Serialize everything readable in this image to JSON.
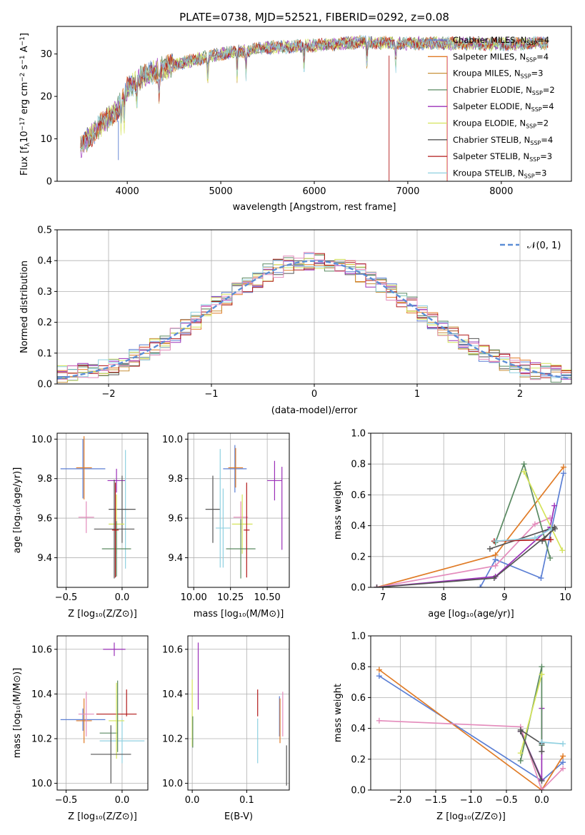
{
  "colors": [
    "#5b7fd4",
    "#e07b26",
    "#c8913a",
    "#5a8a62",
    "#9b30b8",
    "#d4e35a",
    "#555555",
    "#b21a1a",
    "#8fd0e0",
    "#e48cbc"
  ],
  "chart_data": [
    {
      "type": "line",
      "title": "PLATE=0738, MJD=52521, FIBERID=0292, z=0.08",
      "xlabel": "wavelength [Angstrom, rest frame]",
      "ylabel": "Flux [f$_\\lambda$10$^{-17}$ erg cm$^{-2}$ s$^{-1}$ A$^{-1}$]",
      "xlim": [
        3250,
        8750
      ],
      "ylim": [
        0,
        36.5
      ],
      "xticks": [
        4000,
        5000,
        6000,
        7000,
        8000
      ],
      "yticks": [
        0,
        10,
        20,
        30
      ],
      "legend_position": "upper-right",
      "legend": [
        {
          "name": "Chabrier MILES, N",
          "sub": "SSP",
          "tail": "=4"
        },
        {
          "name": "Salpeter MILES, N",
          "sub": "SSP",
          "tail": "=4"
        },
        {
          "name": "Kroupa MILES, N",
          "sub": "SSP",
          "tail": "=3"
        },
        {
          "name": "Chabrier ELODIE, N",
          "sub": "SSP",
          "tail": "=2"
        },
        {
          "name": "Salpeter ELODIE, N",
          "sub": "SSP",
          "tail": "=4"
        },
        {
          "name": "Kroupa ELODIE, N",
          "sub": "SSP",
          "tail": "=2"
        },
        {
          "name": "Chabrier STELIB, N",
          "sub": "SSP",
          "tail": "=4"
        },
        {
          "name": "Salpeter STELIB, N",
          "sub": "SSP",
          "tail": "=3"
        },
        {
          "name": "Kroupa STELIB, N",
          "sub": "SSP",
          "tail": "=3"
        }
      ],
      "continuum": {
        "wavelength": [
          3500,
          3700,
          3900,
          4000,
          4200,
          4500,
          5000,
          5500,
          6000,
          6500,
          7000,
          7500,
          8000,
          8500
        ],
        "flux": [
          8,
          13,
          17,
          22,
          25,
          27.5,
          30,
          31.5,
          32,
          32.8,
          32.5,
          32.5,
          32.3,
          32.6
        ]
      },
      "series_extent": [
        3500,
        8500
      ],
      "grid": false
    },
    {
      "type": "step",
      "xlabel": "(data-model)/error",
      "ylabel": "Normed distribution",
      "xlim": [
        -2.5,
        2.5
      ],
      "ylim": [
        0,
        0.5
      ],
      "xticks": [
        -2,
        -1,
        0,
        1,
        2
      ],
      "xticklabels": [
        "−2",
        "−1",
        "0",
        "1",
        "2"
      ],
      "yticks": [
        0.0,
        0.1,
        0.2,
        0.3,
        0.4,
        0.5
      ],
      "yticklabels": [
        "0.0",
        "0.1",
        "0.2",
        "0.3",
        "0.4",
        "0.5"
      ],
      "bin_width": 0.1,
      "reference_curve": {
        "label": "𝒩(0, 1)",
        "mean": 0,
        "sigma": 1
      },
      "legend_position": "upper-right",
      "grid": true
    },
    {
      "type": "scatter",
      "xlabel": "Z [log₁₀(Z/Z⊙)]",
      "ylabel": "age  [log₁₀(age/yr)]",
      "xlim": [
        -0.58,
        0.23
      ],
      "ylim": [
        9.25,
        10.03
      ],
      "xticks": [
        -0.5,
        0.0
      ],
      "xticklabels": [
        "−0.5",
        "0.0"
      ],
      "yticks": [
        9.4,
        9.6,
        9.8,
        10.0
      ],
      "yticklabels": [
        "9.4",
        "9.6",
        "9.8",
        "10.0"
      ],
      "errorbars": [
        {
          "c": 0,
          "x": -0.35,
          "y": 9.85,
          "xerr": 0.2,
          "yerr": 0.15
        },
        {
          "c": 1,
          "x": -0.34,
          "y": 9.855,
          "xerr": 0.07,
          "yerr": 0.16
        },
        {
          "c": 9,
          "x": -0.32,
          "y": 9.605,
          "xerr": 0.07,
          "yerr": 0.08
        },
        {
          "c": 4,
          "x": -0.05,
          "y": 9.79,
          "xerr": 0.08,
          "yerr": 0.06
        },
        {
          "c": 8,
          "x": 0.03,
          "y": 9.645,
          "xerr": 0.03,
          "yerr": 0.3
        },
        {
          "c": 6,
          "x": 0.0,
          "y": 9.645,
          "xerr": 0.12,
          "yerr": 0.17
        },
        {
          "c": 5,
          "x": -0.05,
          "y": 9.57,
          "xerr": 0.07,
          "yerr": 0.15
        },
        {
          "c": 6,
          "x": -0.07,
          "y": 9.545,
          "xerr": 0.18,
          "yerr": 0.25
        },
        {
          "c": 3,
          "x": -0.05,
          "y": 9.445,
          "xerr": 0.13,
          "yerr": 0.14
        },
        {
          "c": 7,
          "x": -0.06,
          "y": 9.54,
          "xerr": 0.03,
          "yerr": 0.24
        }
      ],
      "grid": true
    },
    {
      "type": "scatter",
      "xlabel": "mass [log₁₀(M/M⊙)]",
      "ylabel": "",
      "xlim": [
        9.96,
        10.65
      ],
      "ylim": [
        9.25,
        10.03
      ],
      "xticks": [
        10.0,
        10.25,
        10.5
      ],
      "xticklabels": [
        "10.00",
        "10.25",
        "10.50"
      ],
      "yticks": [
        9.4,
        9.6,
        9.8,
        10.0
      ],
      "yticklabels": [
        "9.4",
        "9.6",
        "9.8",
        "10.0"
      ],
      "errorbars": [
        {
          "c": 0,
          "x": 10.28,
          "y": 9.85,
          "xerr": 0.08,
          "yerr": 0.12
        },
        {
          "c": 1,
          "x": 10.285,
          "y": 9.855,
          "xerr": 0.05,
          "yerr": 0.1
        },
        {
          "c": 6,
          "x": 10.13,
          "y": 9.645,
          "xerr": 0.05,
          "yerr": 0.17
        },
        {
          "c": 8,
          "x": 10.2,
          "y": 9.55,
          "xerr": 0.05,
          "yerr": 0.2
        },
        {
          "c": 9,
          "x": 10.32,
          "y": 9.605,
          "xerr": 0.05,
          "yerr": 0.08
        },
        {
          "c": 5,
          "x": 10.33,
          "y": 9.57,
          "xerr": 0.07,
          "yerr": 0.15
        },
        {
          "c": 3,
          "x": 10.32,
          "y": 9.445,
          "xerr": 0.1,
          "yerr": 0.15
        },
        {
          "c": 4,
          "x": 10.55,
          "y": 9.79,
          "xerr": 0.05,
          "yerr": 0.1
        },
        {
          "c": 4,
          "x": 10.6,
          "y": 9.65,
          "xerr": 0.0,
          "yerr": 0.21
        },
        {
          "c": 7,
          "x": 10.36,
          "y": 9.54,
          "xerr": 0.02,
          "yerr": 0.24
        },
        {
          "c": 8,
          "x": 10.18,
          "y": 9.65,
          "xerr": 0.0,
          "yerr": 0.3
        }
      ],
      "grid": true
    },
    {
      "type": "line",
      "xlabel": "age  [log₁₀(age/yr)]",
      "ylabel": "mass weight",
      "xlim": [
        6.8,
        10.1
      ],
      "ylim": [
        0,
        1.0
      ],
      "xticks": [
        7,
        8,
        9,
        10
      ],
      "xticklabels": [
        "7",
        "8",
        "9",
        "10"
      ],
      "yticks": [
        0.0,
        0.2,
        0.4,
        0.6,
        0.8,
        1.0
      ],
      "yticklabels": [
        "0.0",
        "0.2",
        "0.4",
        "0.6",
        "0.8",
        "1.0"
      ],
      "series": [
        {
          "c": 0,
          "x": [
            8.6,
            8.85,
            9.6,
            9.97
          ],
          "y": [
            0.0,
            0.18,
            0.06,
            0.74
          ]
        },
        {
          "c": 1,
          "x": [
            6.9,
            8.85,
            9.97
          ],
          "y": [
            0.0,
            0.21,
            0.78
          ]
        },
        {
          "c": 9,
          "x": [
            6.9,
            8.85,
            9.5,
            9.75
          ],
          "y": [
            0.0,
            0.14,
            0.41,
            0.45
          ]
        },
        {
          "c": 4,
          "x": [
            6.9,
            8.85,
            9.75,
            9.82
          ],
          "y": [
            0.0,
            0.07,
            0.39,
            0.53
          ]
        },
        {
          "c": 3,
          "x": [
            8.85,
            9.32,
            9.75
          ],
          "y": [
            0.29,
            0.8,
            0.19
          ]
        },
        {
          "c": 5,
          "x": [
            9.32,
            9.95
          ],
          "y": [
            0.75,
            0.24
          ]
        },
        {
          "c": 6,
          "x": [
            8.76,
            9.82,
            9.62
          ],
          "y": [
            0.25,
            0.39,
            0.3
          ]
        },
        {
          "c": 7,
          "x": [
            8.83,
            9.76
          ],
          "y": [
            0.3,
            0.31
          ]
        },
        {
          "c": 8,
          "x": [
            8.86,
            9.5,
            9.77
          ],
          "y": [
            0.3,
            0.32,
            0.38
          ]
        },
        {
          "c": 6,
          "x": [
            6.9,
            8.83,
            9.83
          ],
          "y": [
            0.0,
            0.06,
            0.38
          ]
        }
      ],
      "grid": true
    },
    {
      "type": "scatter",
      "xlabel": "Z [log₁₀(Z/Z⊙)]",
      "ylabel": "mass [log₁₀(M/M⊙)]",
      "xlim": [
        -0.58,
        0.23
      ],
      "ylim": [
        9.97,
        10.66
      ],
      "xticks": [
        -0.5,
        0.0
      ],
      "xticklabels": [
        "−0.5",
        "0.0"
      ],
      "yticks": [
        10.0,
        10.2,
        10.4,
        10.6
      ],
      "yticklabels": [
        "10.0",
        "10.2",
        "10.4",
        "10.6"
      ],
      "errorbars": [
        {
          "c": 0,
          "x": -0.35,
          "y": 10.285,
          "xerr": 0.2,
          "yerr": 0.05
        },
        {
          "c": 1,
          "x": -0.34,
          "y": 10.28,
          "xerr": 0.07,
          "yerr": 0.1
        },
        {
          "c": 9,
          "x": -0.32,
          "y": 10.31,
          "xerr": 0.07,
          "yerr": 0.1
        },
        {
          "c": 4,
          "x": -0.07,
          "y": 10.6,
          "xerr": 0.1,
          "yerr": 0.03
        },
        {
          "c": 7,
          "x": -0.05,
          "y": 10.31,
          "xerr": 0.18,
          "yerr": 0.0
        },
        {
          "c": 7,
          "x": 0.04,
          "y": 10.36,
          "xerr": 0.0,
          "yerr": 0.06
        },
        {
          "c": 8,
          "x": 0.0,
          "y": 10.19,
          "xerr": 0.2,
          "yerr": 0.1
        },
        {
          "c": 3,
          "x": -0.12,
          "y": 10.225,
          "xerr": 0.08,
          "yerr": 0.0
        },
        {
          "c": 5,
          "x": -0.05,
          "y": 10.28,
          "xerr": 0.07,
          "yerr": 0.17
        },
        {
          "c": 3,
          "x": -0.04,
          "y": 10.3,
          "xerr": 0.0,
          "yerr": 0.16
        },
        {
          "c": 6,
          "x": -0.1,
          "y": 10.13,
          "xerr": 0.18,
          "yerr": 0.13
        }
      ],
      "grid": true
    },
    {
      "type": "scatter",
      "xlabel": "E(B-V)",
      "ylabel": "",
      "xlim": [
        -0.008,
        0.178
      ],
      "ylim": [
        9.97,
        10.66
      ],
      "xticks": [
        0.0,
        0.1
      ],
      "xticklabels": [
        "0.0",
        "0.1"
      ],
      "yticks": [
        10.0,
        10.2,
        10.4,
        10.6
      ],
      "yticklabels": [
        "10.0",
        "10.2",
        "10.4",
        "10.6"
      ],
      "errorbars": [
        {
          "c": 5,
          "x": 0.0,
          "y": 10.315,
          "xerr": 0,
          "yerr": 0.15
        },
        {
          "c": 3,
          "x": 0.001,
          "y": 10.23,
          "xerr": 0,
          "yerr": 0.07
        },
        {
          "c": 4,
          "x": 0.011,
          "y": 10.48,
          "xerr": 0,
          "yerr": 0.15
        },
        {
          "c": 7,
          "x": 0.12,
          "y": 10.36,
          "xerr": 0,
          "yerr": 0.06
        },
        {
          "c": 8,
          "x": 0.12,
          "y": 10.19,
          "xerr": 0,
          "yerr": 0.1
        },
        {
          "c": 0,
          "x": 0.16,
          "y": 10.3,
          "xerr": 0,
          "yerr": 0.09
        },
        {
          "c": 1,
          "x": 0.161,
          "y": 10.28,
          "xerr": 0,
          "yerr": 0.1
        },
        {
          "c": 9,
          "x": 0.166,
          "y": 10.31,
          "xerr": 0,
          "yerr": 0.1
        },
        {
          "c": 6,
          "x": 0.173,
          "y": 10.08,
          "xerr": 0,
          "yerr": 0.09
        }
      ],
      "grid": true
    },
    {
      "type": "line",
      "xlabel": "Z [log₁₀(Z/Z⊙)]",
      "ylabel": "mass weight",
      "xlim": [
        -2.42,
        0.42
      ],
      "ylim": [
        0,
        1.0
      ],
      "xticks": [
        -2.0,
        -1.5,
        -1.0,
        -0.5,
        0.0
      ],
      "xticklabels": [
        "−2.0",
        "−1.5",
        "−1.0",
        "−0.5",
        "0.0"
      ],
      "yticks": [
        0.0,
        0.2,
        0.4,
        0.6,
        0.8,
        1.0
      ],
      "yticklabels": [
        "0.0",
        "0.2",
        "0.4",
        "0.6",
        "0.8",
        "1.0"
      ],
      "series": [
        {
          "c": 0,
          "x": [
            -2.3,
            0.0,
            0.3
          ],
          "y": [
            0.74,
            0.06,
            0.18
          ]
        },
        {
          "c": 1,
          "x": [
            -2.3,
            0.0,
            0.3
          ],
          "y": [
            0.78,
            0.0,
            0.22
          ]
        },
        {
          "c": 9,
          "x": [
            -2.3,
            -0.3,
            0.0,
            0.3
          ],
          "y": [
            0.45,
            0.41,
            0.0,
            0.14
          ]
        },
        {
          "c": 4,
          "x": [
            -0.3,
            0.0,
            0.0
          ],
          "y": [
            0.38,
            0.07,
            0.53
          ]
        },
        {
          "c": 3,
          "x": [
            -0.3,
            0.0,
            0.0
          ],
          "y": [
            0.19,
            0.8,
            0.29
          ]
        },
        {
          "c": 5,
          "x": [
            -0.3,
            0.0
          ],
          "y": [
            0.24,
            0.75
          ]
        },
        {
          "c": 6,
          "x": [
            -0.3,
            0.0,
            0.0
          ],
          "y": [
            0.39,
            0.3,
            0.25
          ]
        },
        {
          "c": 8,
          "x": [
            0.0,
            0.3
          ],
          "y": [
            0.31,
            0.3
          ]
        },
        {
          "c": 6,
          "x": [
            -0.3,
            0.0
          ],
          "y": [
            0.38,
            0.06
          ]
        }
      ],
      "grid": true
    }
  ]
}
